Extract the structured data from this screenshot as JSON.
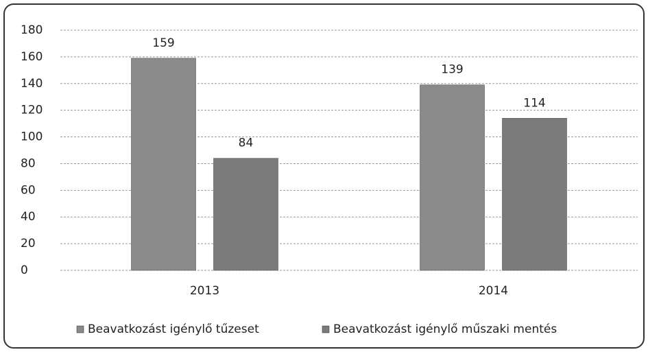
{
  "chart_data": {
    "type": "bar",
    "categories": [
      "2013",
      "2014"
    ],
    "series": [
      {
        "name": "Beavatkozást igénylő tűzeset",
        "color": "#8a8a8a",
        "values": [
          159,
          139
        ]
      },
      {
        "name": "Beavatkozást igénylő műszaki mentés",
        "color": "#7b7b7b",
        "values": [
          84,
          114
        ]
      }
    ],
    "ylim": [
      0,
      180
    ],
    "yticks": [
      0,
      20,
      40,
      60,
      80,
      100,
      120,
      140,
      160,
      180
    ],
    "grid": true,
    "legend": "bottom"
  }
}
